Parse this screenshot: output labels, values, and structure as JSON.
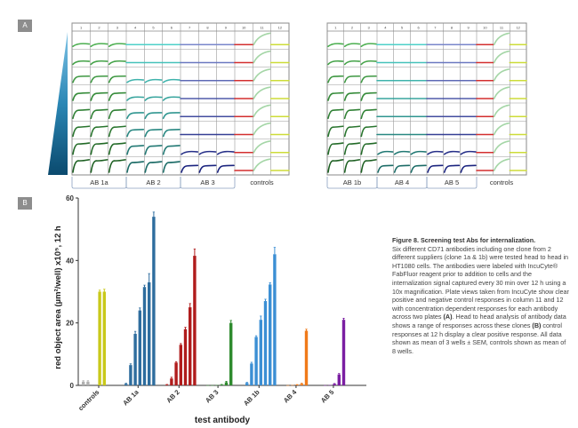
{
  "panel_a": {
    "label": "A",
    "column_numbers": [
      "1",
      "2",
      "3",
      "4",
      "5",
      "6",
      "7",
      "8",
      "9",
      "10",
      "11",
      "12"
    ],
    "left_plate": {
      "groups": [
        {
          "label": "AB 1a",
          "cols": [
            1,
            3
          ],
          "color": "#4caf50",
          "dark": "#1b5e20",
          "response": "strong"
        },
        {
          "label": "AB 2",
          "cols": [
            4,
            6
          ],
          "color": "#4dd0c8",
          "dark": "#1b6b66",
          "response": "medium"
        },
        {
          "label": "AB 3",
          "cols": [
            7,
            9
          ],
          "color": "#7986cb",
          "dark": "#1a237e",
          "response": "low"
        }
      ],
      "controls_label": "controls"
    },
    "right_plate": {
      "groups": [
        {
          "label": "AB 1b",
          "cols": [
            1,
            3
          ],
          "color": "#4caf50",
          "dark": "#1b5e20",
          "response": "strong"
        },
        {
          "label": "AB 4",
          "cols": [
            4,
            6
          ],
          "color": "#4dd0c8",
          "dark": "#1b6b66",
          "response": "low"
        },
        {
          "label": "AB 5",
          "cols": [
            7,
            9
          ],
          "color": "#7986cb",
          "dark": "#1a237e",
          "response": "low"
        }
      ],
      "controls_label": "controls"
    },
    "control_colors": {
      "col10": "#d32f2f",
      "col11": "#a5d6a7",
      "col12": "#cddc39"
    }
  },
  "panel_b": {
    "label": "B"
  },
  "chart_data": {
    "type": "bar",
    "title": "",
    "xlabel": "test antibody",
    "ylabel": "red object area (µm²/well) x10⁵, 12 h",
    "ylim": [
      0,
      60
    ],
    "yticks": [
      0,
      20,
      40,
      60
    ],
    "categories": [
      "controls",
      "AB 1a",
      "AB 2",
      "AB 3",
      "AB 1b",
      "AB 4",
      "AB 5"
    ],
    "series": [
      {
        "name": "controls",
        "color": "#b0b0b0",
        "values": [
          1.2,
          1.2
        ],
        "errors": [
          0.3,
          0.3
        ],
        "extra": {
          "color": "#c9c91a",
          "values": [
            30,
            30
          ],
          "errors": [
            0.5,
            0.8
          ]
        }
      },
      {
        "name": "AB 1a",
        "color": "#2e6d9e",
        "values": [
          0.5,
          6.5,
          16.5,
          24,
          31.5,
          33,
          54
        ],
        "errors": [
          0.2,
          0.4,
          0.8,
          0.8,
          0.6,
          2.8,
          1.5
        ]
      },
      {
        "name": "AB 2",
        "color": "#b01c1c",
        "values": [
          0.2,
          2.2,
          7.3,
          13,
          18,
          25,
          41.5
        ],
        "errors": [
          0.1,
          0.4,
          0.3,
          0.4,
          0.6,
          1.2,
          2.2
        ]
      },
      {
        "name": "AB 3",
        "color": "#2e8b2e",
        "values": [
          0.05,
          0.05,
          0.1,
          0.2,
          1.0,
          20
        ],
        "errors": [
          0,
          0,
          0,
          0.1,
          0.3,
          0.8
        ]
      },
      {
        "name": "AB 1b",
        "color": "#3b8fd4",
        "values": [
          0.8,
          7,
          15.5,
          21,
          27,
          32.3,
          42
        ],
        "errors": [
          0.2,
          0.4,
          0.4,
          1.2,
          0.6,
          0.6,
          2.2
        ]
      },
      {
        "name": "AB 4",
        "color": "#f07a1a",
        "values": [
          0.05,
          0.1,
          0.2,
          0.5,
          17.5
        ],
        "errors": [
          0,
          0,
          0.05,
          0.2,
          0.5
        ]
      },
      {
        "name": "AB 5",
        "color": "#7b1fa2",
        "values": [
          0.05,
          0.1,
          0.5,
          3.5,
          21
        ],
        "errors": [
          0,
          0,
          0.1,
          0.3,
          0.5
        ]
      }
    ],
    "grid": false,
    "legend": "none"
  },
  "caption": {
    "title": "Figure 8. Screening test Abs for internalization.",
    "body_parts": [
      "Six different CD71 antibodies including one clone from 2 different suppliers (clone 1a & 1b) were tested head to head in HT1080 cells. The antibodies were labeled with IncuCyte® FabFluor reagent prior to addition to cells and the internalization signal captured every 30 min over 12 h using a 10x magnification. Plate views taken from IncuCyte show clear positive and negative control responses in column 11 and 12 with concentration dependent responses for each antibody across two plates ",
      "(A)",
      ". Head to head analysis of antibody data shows a range of responses across these clones ",
      "(B)",
      " control responses at 12 h display a clear positive response. All data shown as mean of 3 wells ± SEM, controls shown as mean of 8 wells."
    ]
  }
}
